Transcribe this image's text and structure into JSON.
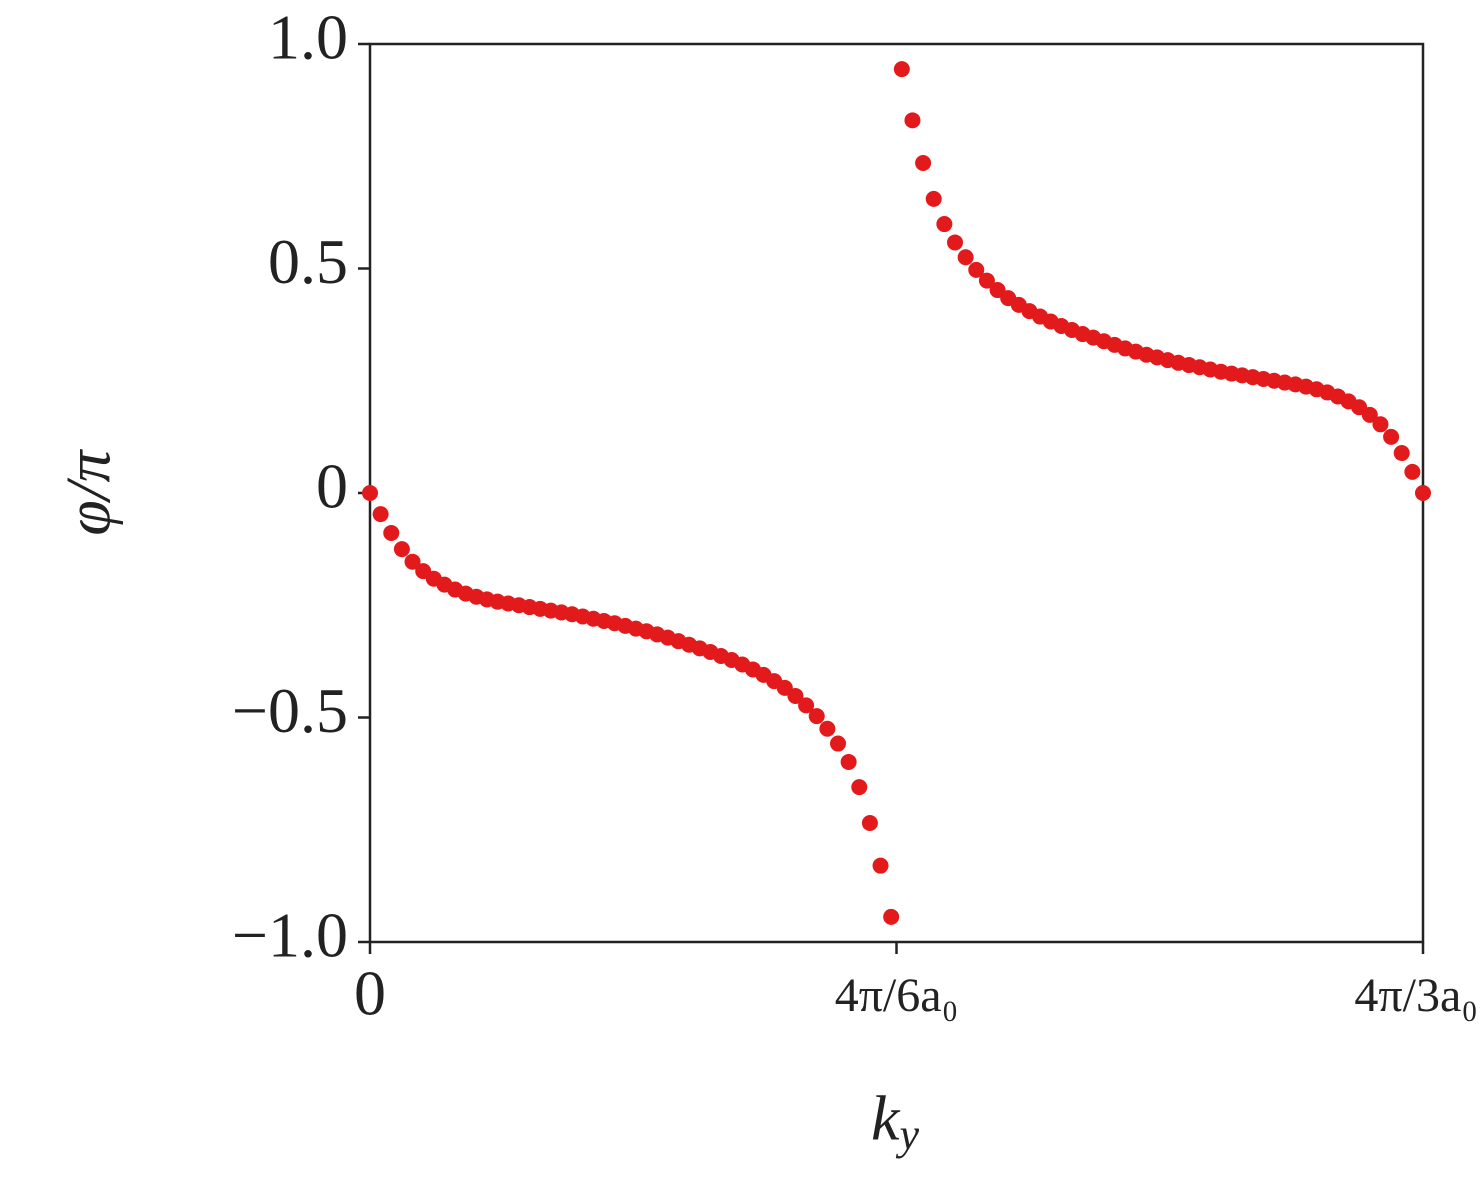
{
  "chart_data": {
    "type": "scatter",
    "x_label": "k_y",
    "y_label": "φ/π",
    "xlim": [
      0,
      4.1888
    ],
    "ylim": [
      -1.0,
      1.0
    ],
    "xticks": [
      0,
      {
        "value": 2.0944,
        "label": "4π/6a₀"
      },
      {
        "value": 4.1888,
        "label": "4π/3a₀"
      }
    ],
    "yticks": [
      {
        "value": -1.0,
        "label": "−1.0"
      },
      {
        "value": -0.5,
        "label": "−0.5"
      },
      0,
      0.5,
      {
        "value": 1.0,
        "label": "1.0"
      }
    ],
    "grid": false,
    "series": [
      {
        "color": "#e31a1c",
        "x": [
          0,
          0.0423,
          0.0846,
          0.1269,
          0.1692,
          0.2116,
          0.2539,
          0.2962,
          0.3385,
          0.3808,
          0.4231,
          0.4654,
          0.5077,
          0.55,
          0.5924,
          0.6347,
          0.677,
          0.7193,
          0.7616,
          0.8039,
          0.8462,
          0.8885,
          0.9308,
          0.9732,
          1.0155,
          1.0578,
          1.1001,
          1.1424,
          1.1847,
          1.227,
          1.2693,
          1.3116,
          1.354,
          1.3963,
          1.4386,
          1.4809,
          1.5232,
          1.5655,
          1.6078,
          1.6501,
          1.6924,
          1.7348,
          1.7771,
          1.8194,
          1.8617,
          1.904,
          1.9463,
          1.9886,
          2.0309,
          2.0732,
          2.1156,
          2.1579,
          2.2002,
          2.2425,
          2.2848,
          2.3271,
          2.3694,
          2.4117,
          2.454,
          2.4964,
          2.5387,
          2.581,
          2.6233,
          2.6656,
          2.7079,
          2.7502,
          2.7925,
          2.8348,
          2.8772,
          2.9195,
          2.9618,
          3.0041,
          3.0464,
          3.0887,
          3.131,
          3.1733,
          3.2156,
          3.258,
          3.3003,
          3.3426,
          3.3849,
          3.4272,
          3.4695,
          3.5118,
          3.5541,
          3.5964,
          3.6388,
          3.6811,
          3.7234,
          3.7657,
          3.808,
          3.8503,
          3.8926,
          3.9349,
          3.9772,
          4.0196,
          4.0619,
          4.1042,
          4.1465,
          4.1888
        ],
        "values": [
          0,
          -0.047,
          -0.089,
          -0.125,
          -0.153,
          -0.174,
          -0.191,
          -0.204,
          -0.215,
          -0.224,
          -0.231,
          -0.237,
          -0.242,
          -0.246,
          -0.25,
          -0.254,
          -0.258,
          -0.262,
          -0.266,
          -0.27,
          -0.275,
          -0.28,
          -0.285,
          -0.29,
          -0.296,
          -0.302,
          -0.308,
          -0.315,
          -0.322,
          -0.33,
          -0.338,
          -0.346,
          -0.354,
          -0.363,
          -0.372,
          -0.382,
          -0.393,
          -0.405,
          -0.419,
          -0.434,
          -0.452,
          -0.473,
          -0.497,
          -0.525,
          -0.558,
          -0.599,
          -0.655,
          -0.735,
          -0.83,
          -0.944,
          0.944,
          0.83,
          0.735,
          0.655,
          0.599,
          0.558,
          0.525,
          0.497,
          0.473,
          0.452,
          0.434,
          0.419,
          0.405,
          0.393,
          0.382,
          0.372,
          0.363,
          0.354,
          0.346,
          0.338,
          0.33,
          0.322,
          0.315,
          0.308,
          0.302,
          0.296,
          0.29,
          0.285,
          0.28,
          0.275,
          0.27,
          0.266,
          0.262,
          0.258,
          0.254,
          0.25,
          0.246,
          0.242,
          0.237,
          0.231,
          0.224,
          0.215,
          0.204,
          0.191,
          0.174,
          0.153,
          0.125,
          0.089,
          0.047,
          0
        ]
      }
    ]
  }
}
